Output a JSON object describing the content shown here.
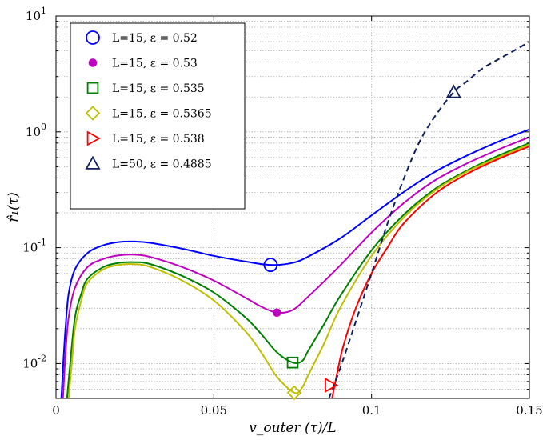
{
  "chart_data": {
    "type": "line",
    "xlabel": "v_outer (τ)/L",
    "ylabel": "r̂₁(τ)",
    "xlim": [
      0,
      0.15
    ],
    "ylim": [
      0.005,
      10
    ],
    "yscale": "log",
    "grid": true,
    "legend_position": "top-left",
    "x_ticks": [
      "0",
      "0.05",
      "0.1",
      "0.15"
    ],
    "y_ticks": [
      {
        "base": "10",
        "exp": "1",
        "value": 10
      },
      {
        "base": "10",
        "exp": "0",
        "value": 1
      },
      {
        "base": "10",
        "exp": "-1",
        "value": 0.1
      },
      {
        "base": "10",
        "exp": "-2",
        "value": 0.01
      }
    ],
    "series": [
      {
        "name": "L=15, ε = 0.52",
        "color": "#0000ff",
        "marker": "circle-open",
        "dash": "solid",
        "marker_point": [
          0.068,
          0.071
        ],
        "points": [
          [
            0.0017,
            0.005
          ],
          [
            0.0023,
            0.01
          ],
          [
            0.003,
            0.02
          ],
          [
            0.004,
            0.04
          ],
          [
            0.006,
            0.065
          ],
          [
            0.01,
            0.09
          ],
          [
            0.015,
            0.105
          ],
          [
            0.02,
            0.112
          ],
          [
            0.025,
            0.113
          ],
          [
            0.03,
            0.11
          ],
          [
            0.04,
            0.098
          ],
          [
            0.05,
            0.085
          ],
          [
            0.06,
            0.076
          ],
          [
            0.068,
            0.071
          ],
          [
            0.075,
            0.074
          ],
          [
            0.08,
            0.084
          ],
          [
            0.09,
            0.12
          ],
          [
            0.1,
            0.19
          ],
          [
            0.11,
            0.3
          ],
          [
            0.12,
            0.45
          ],
          [
            0.13,
            0.62
          ],
          [
            0.14,
            0.82
          ],
          [
            0.15,
            1.05
          ]
        ]
      },
      {
        "name": "L=15, ε = 0.53",
        "color": "#bf00bf",
        "marker": "dot",
        "dash": "solid",
        "marker_point": [
          0.07,
          0.0275
        ],
        "points": [
          [
            0.0022,
            0.005
          ],
          [
            0.003,
            0.012
          ],
          [
            0.004,
            0.025
          ],
          [
            0.006,
            0.045
          ],
          [
            0.01,
            0.068
          ],
          [
            0.015,
            0.08
          ],
          [
            0.02,
            0.086
          ],
          [
            0.025,
            0.087
          ],
          [
            0.03,
            0.083
          ],
          [
            0.04,
            0.068
          ],
          [
            0.05,
            0.052
          ],
          [
            0.06,
            0.037
          ],
          [
            0.065,
            0.031
          ],
          [
            0.07,
            0.0275
          ],
          [
            0.075,
            0.029
          ],
          [
            0.08,
            0.038
          ],
          [
            0.09,
            0.07
          ],
          [
            0.1,
            0.135
          ],
          [
            0.11,
            0.24
          ],
          [
            0.12,
            0.38
          ],
          [
            0.13,
            0.53
          ],
          [
            0.14,
            0.7
          ],
          [
            0.15,
            0.9
          ]
        ]
      },
      {
        "name": "L=15, ε = 0.535",
        "color": "#008000",
        "marker": "square-open",
        "dash": "solid",
        "marker_point": [
          0.075,
          0.0102
        ],
        "points": [
          [
            0.0035,
            0.005
          ],
          [
            0.0045,
            0.01
          ],
          [
            0.006,
            0.025
          ],
          [
            0.008,
            0.04
          ],
          [
            0.01,
            0.054
          ],
          [
            0.015,
            0.068
          ],
          [
            0.02,
            0.074
          ],
          [
            0.025,
            0.075
          ],
          [
            0.03,
            0.072
          ],
          [
            0.04,
            0.057
          ],
          [
            0.05,
            0.041
          ],
          [
            0.06,
            0.025
          ],
          [
            0.065,
            0.018
          ],
          [
            0.07,
            0.0125
          ],
          [
            0.075,
            0.0102
          ],
          [
            0.078,
            0.0105
          ],
          [
            0.08,
            0.013
          ],
          [
            0.085,
            0.022
          ],
          [
            0.09,
            0.038
          ],
          [
            0.1,
            0.095
          ],
          [
            0.11,
            0.19
          ],
          [
            0.12,
            0.32
          ],
          [
            0.13,
            0.46
          ],
          [
            0.14,
            0.62
          ],
          [
            0.15,
            0.8
          ]
        ]
      },
      {
        "name": "L=15, ε = 0.5365",
        "color": "#bfbf00",
        "marker": "diamond-open",
        "dash": "solid",
        "marker_point": [
          0.0755,
          0.0056
        ],
        "points": [
          [
            0.004,
            0.005
          ],
          [
            0.005,
            0.01
          ],
          [
            0.006,
            0.02
          ],
          [
            0.008,
            0.035
          ],
          [
            0.01,
            0.05
          ],
          [
            0.015,
            0.065
          ],
          [
            0.02,
            0.071
          ],
          [
            0.025,
            0.072
          ],
          [
            0.03,
            0.068
          ],
          [
            0.04,
            0.052
          ],
          [
            0.05,
            0.035
          ],
          [
            0.06,
            0.019
          ],
          [
            0.065,
            0.0125
          ],
          [
            0.07,
            0.0077
          ],
          [
            0.0755,
            0.0056
          ],
          [
            0.078,
            0.0062
          ],
          [
            0.08,
            0.008
          ],
          [
            0.085,
            0.015
          ],
          [
            0.09,
            0.03
          ],
          [
            0.1,
            0.085
          ],
          [
            0.11,
            0.18
          ],
          [
            0.12,
            0.31
          ],
          [
            0.13,
            0.45
          ],
          [
            0.14,
            0.6
          ],
          [
            0.15,
            0.78
          ]
        ]
      },
      {
        "name": "L=15, ε = 0.538",
        "color": "#ff0000",
        "marker": "triangle-right-open",
        "dash": "solid",
        "marker_point": [
          0.087,
          0.0065
        ],
        "points": [
          [
            0.0875,
            0.005
          ],
          [
            0.089,
            0.008
          ],
          [
            0.091,
            0.014
          ],
          [
            0.095,
            0.03
          ],
          [
            0.1,
            0.06
          ],
          [
            0.105,
            0.1
          ],
          [
            0.11,
            0.16
          ],
          [
            0.12,
            0.29
          ],
          [
            0.13,
            0.43
          ],
          [
            0.14,
            0.58
          ],
          [
            0.15,
            0.75
          ]
        ]
      },
      {
        "name": "L=50, ε = 0.4885",
        "color": "#0f1f5c",
        "marker": "triangle-up-open",
        "dash": "dashed",
        "marker_point": [
          0.126,
          2.2
        ],
        "points": [
          [
            0.0865,
            0.005
          ],
          [
            0.09,
            0.009
          ],
          [
            0.095,
            0.023
          ],
          [
            0.1,
            0.06
          ],
          [
            0.105,
            0.16
          ],
          [
            0.11,
            0.38
          ],
          [
            0.115,
            0.8
          ],
          [
            0.12,
            1.35
          ],
          [
            0.126,
            2.2
          ],
          [
            0.13,
            2.7
          ],
          [
            0.135,
            3.5
          ],
          [
            0.14,
            4.2
          ],
          [
            0.145,
            5.0
          ],
          [
            0.15,
            6.0
          ]
        ]
      }
    ]
  }
}
